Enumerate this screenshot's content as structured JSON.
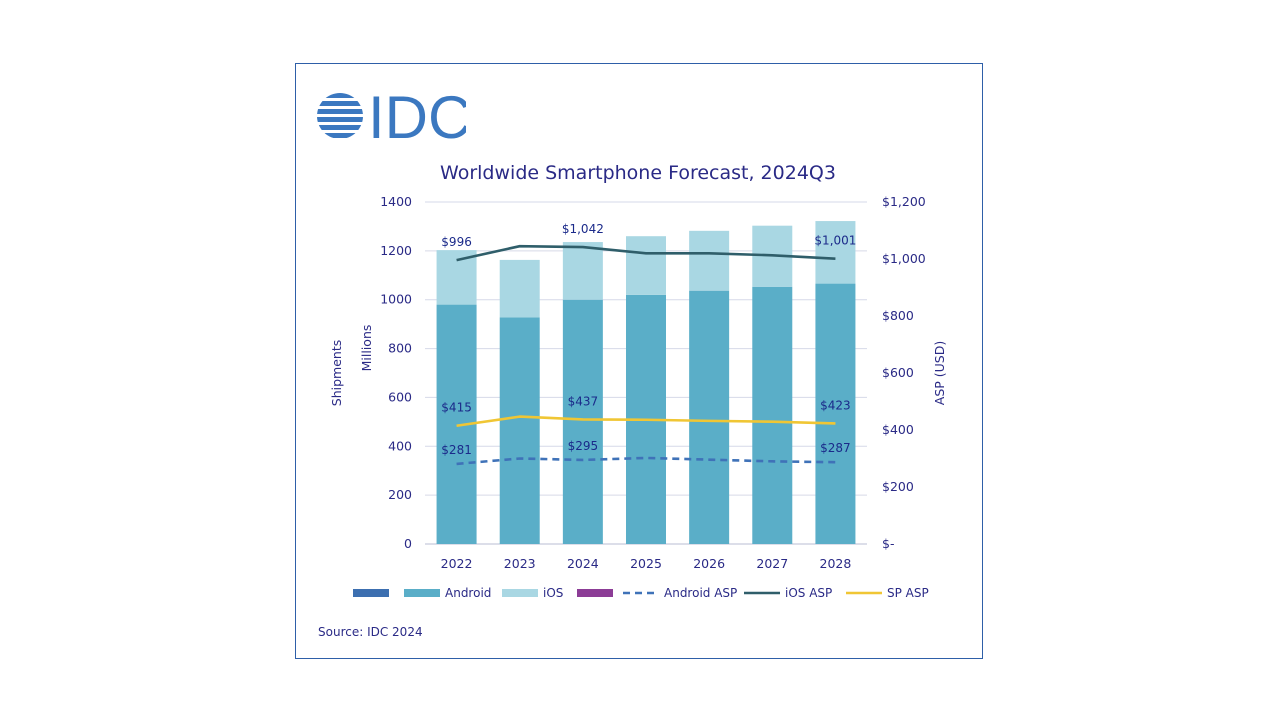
{
  "brand": {
    "logo_text": "IDC",
    "logo_color": "#3b78c0"
  },
  "source": "Source: IDC 2024",
  "colors": {
    "android": "#5aaec8",
    "ios": "#a9d7e3",
    "blank_legend": "#3c6fb0",
    "purple_legend": "#8c3c96",
    "android_asp": "#3f72b8",
    "ios_asp": "#2f5e6a",
    "sp_asp": "#f0c634",
    "text": "#2a2a86",
    "grid": "#d6d9e8",
    "frame": "#2e5fa8"
  },
  "chart_data": {
    "type": "bar",
    "title": "Worldwide Smartphone Forecast, 2024Q3",
    "categories": [
      "2022",
      "2023",
      "2024",
      "2025",
      "2026",
      "2027",
      "2028"
    ],
    "y_left": {
      "label": "Shipments",
      "sublabel": "Millions",
      "lim": [
        0,
        1400
      ],
      "ticks": [
        "0",
        "200",
        "400",
        "600",
        "800",
        "1000",
        "1200",
        "1400"
      ]
    },
    "y_right": {
      "label": "ASP (USD)",
      "lim": [
        0,
        1200
      ],
      "ticks": [
        "$-",
        "$200",
        "$400",
        "$600",
        "$800",
        "$1,000",
        "$1,200"
      ]
    },
    "stacked_series": [
      {
        "name": "Android",
        "values": [
          980,
          928,
          1000,
          1020,
          1037,
          1053,
          1066
        ]
      },
      {
        "name": "iOS",
        "values": [
          223,
          235,
          236,
          240,
          245,
          250,
          256
        ]
      }
    ],
    "line_series": [
      {
        "name": "Android ASP",
        "values": [
          281,
          300,
          295,
          302,
          296,
          290,
          287
        ],
        "style": "dashed"
      },
      {
        "name": "iOS ASP",
        "values": [
          996,
          1045,
          1042,
          1020,
          1020,
          1013,
          1001
        ],
        "style": "solid"
      },
      {
        "name": "SP ASP",
        "values": [
          415,
          447,
          437,
          436,
          432,
          429,
          423
        ],
        "style": "solid"
      }
    ],
    "data_labels": {
      "ios_asp": [
        {
          "index": 0,
          "text": "$996"
        },
        {
          "index": 2,
          "text": "$1,042"
        },
        {
          "index": 6,
          "text": "$1,001"
        }
      ],
      "sp_asp": [
        {
          "index": 0,
          "text": "$415"
        },
        {
          "index": 2,
          "text": "$437"
        },
        {
          "index": 6,
          "text": "$423"
        }
      ],
      "android_asp": [
        {
          "index": 0,
          "text": "$281"
        },
        {
          "index": 2,
          "text": "$295"
        },
        {
          "index": 6,
          "text": "$287"
        }
      ]
    },
    "legend": [
      {
        "label": "",
        "kind": "box",
        "color_key": "blank_legend"
      },
      {
        "label": "Android",
        "kind": "box",
        "color_key": "android"
      },
      {
        "label": "iOS",
        "kind": "box",
        "color_key": "ios"
      },
      {
        "label": "",
        "kind": "box",
        "color_key": "purple_legend"
      },
      {
        "label": "Android ASP",
        "kind": "dash",
        "color_key": "android_asp"
      },
      {
        "label": "iOS ASP",
        "kind": "line",
        "color_key": "ios_asp"
      },
      {
        "label": "SP ASP",
        "kind": "line",
        "color_key": "sp_asp"
      }
    ],
    "legend_placement": "bottom",
    "grid": true
  }
}
